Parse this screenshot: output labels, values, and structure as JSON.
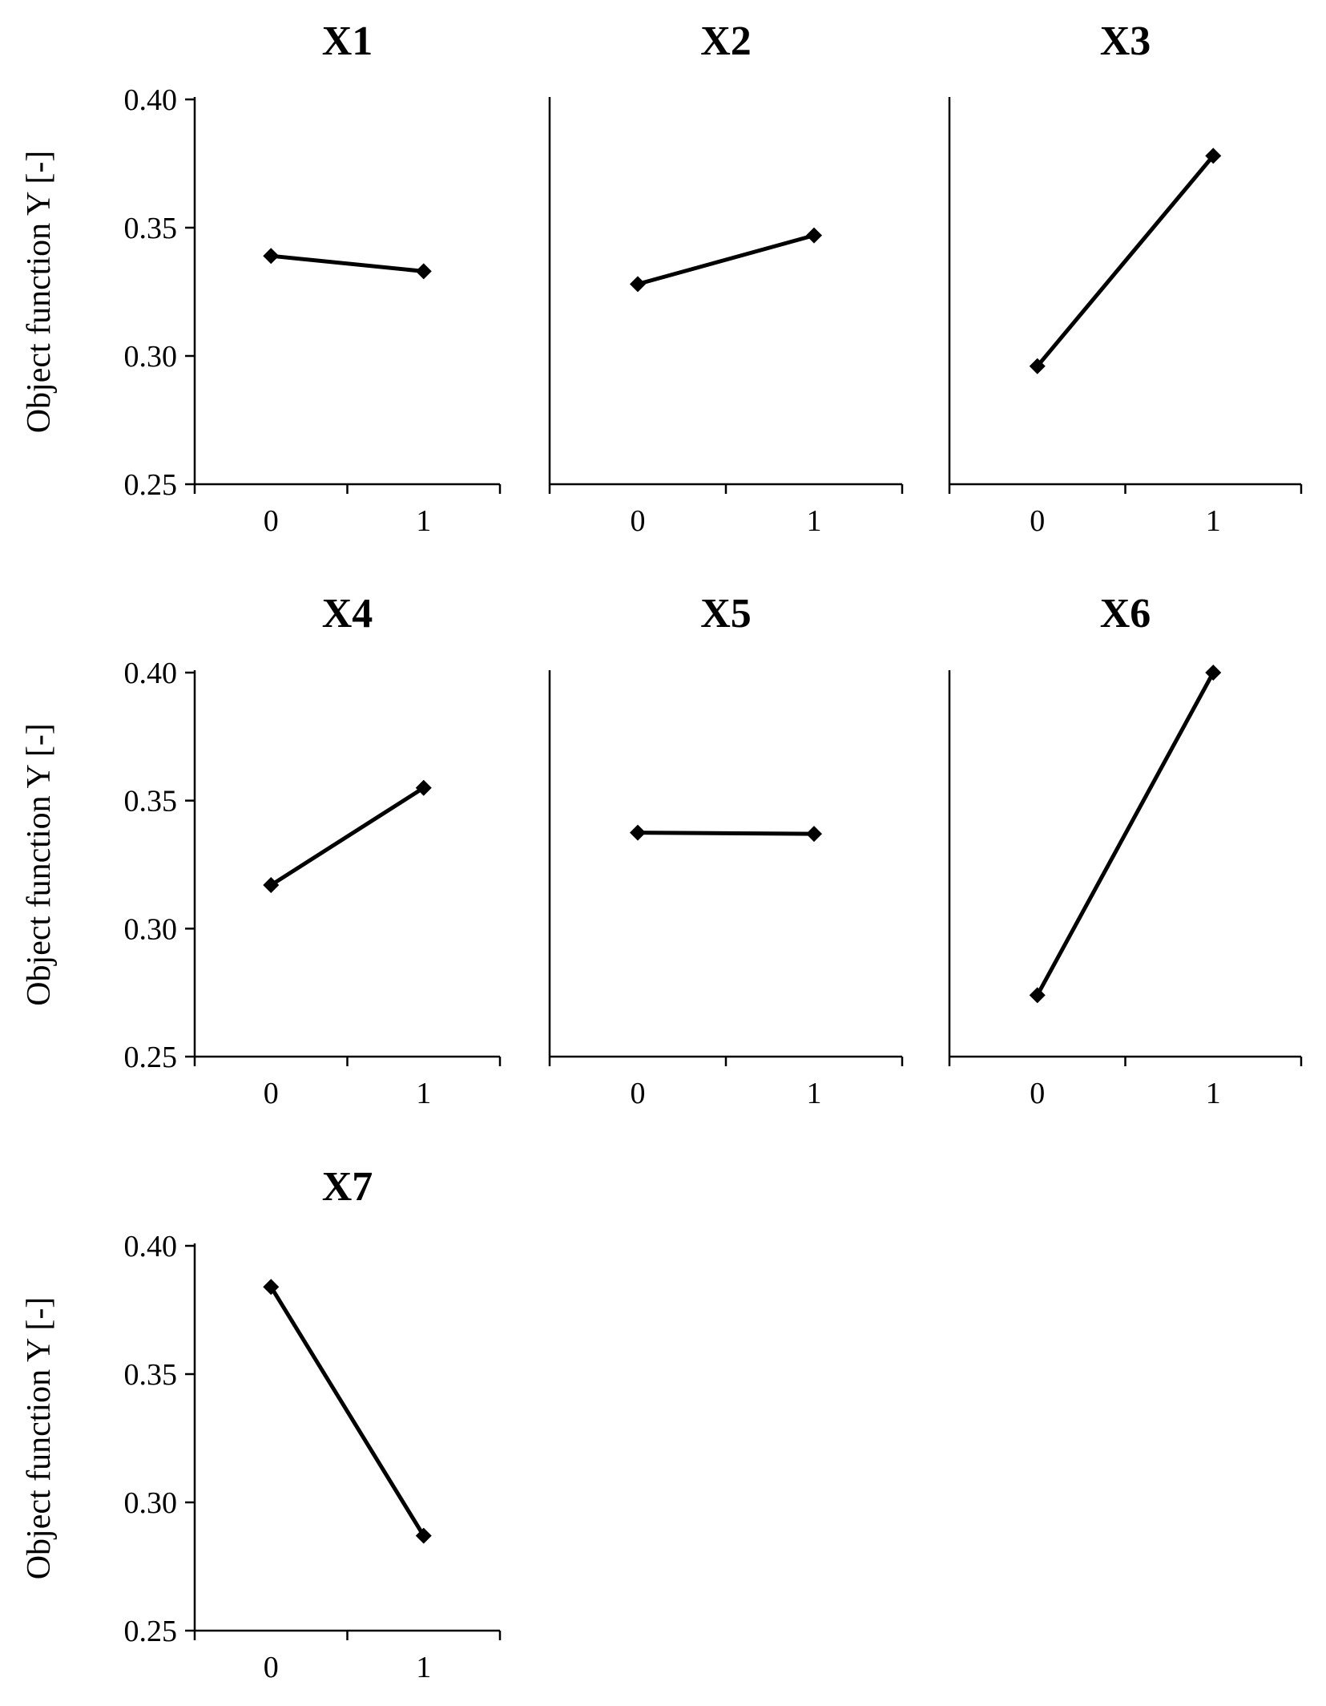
{
  "chart_data": [
    {
      "type": "line",
      "title": "X1",
      "x": [
        "0",
        "1"
      ],
      "values": [
        0.339,
        0.333
      ],
      "ylabel": "Object function Y [-]",
      "xlabel": "",
      "ylim": [
        0.25,
        0.4
      ],
      "yticks": [
        "0.25",
        "0.30",
        "0.35",
        "0.40"
      ],
      "marker": "diamond",
      "grid": false
    },
    {
      "type": "line",
      "title": "X2",
      "x": [
        "0",
        "1"
      ],
      "values": [
        0.328,
        0.347
      ],
      "ylabel": "",
      "xlabel": "",
      "ylim": [
        0.25,
        0.4
      ],
      "yticks": [],
      "marker": "diamond",
      "grid": false
    },
    {
      "type": "line",
      "title": "X3",
      "x": [
        "0",
        "1"
      ],
      "values": [
        0.296,
        0.378
      ],
      "ylabel": "",
      "xlabel": "",
      "ylim": [
        0.25,
        0.4
      ],
      "yticks": [],
      "marker": "diamond",
      "grid": false
    },
    {
      "type": "line",
      "title": "X4",
      "x": [
        "0",
        "1"
      ],
      "values": [
        0.317,
        0.355
      ],
      "ylabel": "Object function Y [-]",
      "xlabel": "",
      "ylim": [
        0.25,
        0.4
      ],
      "yticks": [
        "0.25",
        "0.30",
        "0.35",
        "0.40"
      ],
      "marker": "diamond",
      "grid": false
    },
    {
      "type": "line",
      "title": "X5",
      "x": [
        "0",
        "1"
      ],
      "values": [
        0.3375,
        0.337
      ],
      "ylabel": "",
      "xlabel": "",
      "ylim": [
        0.25,
        0.4
      ],
      "yticks": [],
      "marker": "diamond",
      "grid": false
    },
    {
      "type": "line",
      "title": "X6",
      "x": [
        "0",
        "1"
      ],
      "values": [
        0.274,
        0.4
      ],
      "ylabel": "",
      "xlabel": "",
      "ylim": [
        0.25,
        0.4
      ],
      "yticks": [],
      "marker": "diamond",
      "grid": false
    },
    {
      "type": "line",
      "title": "X7",
      "x": [
        "0",
        "1"
      ],
      "values": [
        0.384,
        0.287
      ],
      "ylabel": "Object function Y [-]",
      "xlabel": "",
      "ylim": [
        0.25,
        0.4
      ],
      "yticks": [
        "0.25",
        "0.30",
        "0.35",
        "0.40"
      ],
      "marker": "diamond",
      "grid": false
    }
  ]
}
